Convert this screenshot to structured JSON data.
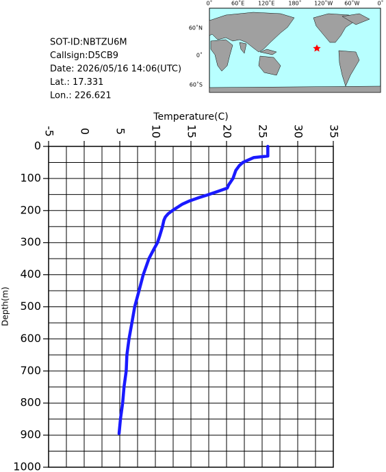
{
  "info": {
    "lines": [
      "SOT-ID:NBTZU6M",
      "Callsign:D5CB9",
      "Date:  2026/05/16 14:06(UTC)",
      "Lat.:   17.331",
      "Lon.:  226.621"
    ]
  },
  "map": {
    "lon_labels": [
      "0˚",
      "60˚E",
      "120˚E",
      "180˚",
      "120˚W",
      "60˚W",
      "0˚"
    ],
    "lat_labels": [
      "60˚N",
      "0˚",
      "60˚S"
    ]
  },
  "chart_data": {
    "type": "line",
    "x_label": "Temperature(C)",
    "y_label": "Depth(m)",
    "y": [
      0,
      30,
      35,
      50,
      60,
      75,
      100,
      120,
      130,
      140,
      150,
      160,
      170,
      180,
      190,
      200,
      210,
      220,
      230,
      250,
      280,
      300,
      320,
      350,
      400,
      450,
      500,
      550,
      600,
      650,
      700,
      750,
      800,
      850,
      895
    ],
    "values": [
      25.8,
      25.8,
      23.8,
      22.3,
      21.8,
      21.3,
      20.9,
      20.3,
      20.1,
      18.8,
      17.5,
      16.1,
      14.8,
      13.8,
      13.1,
      12.4,
      11.8,
      11.4,
      11.2,
      11.0,
      10.6,
      10.3,
      9.8,
      9.1,
      8.3,
      7.7,
      7.1,
      6.7,
      6.3,
      6.0,
      5.9,
      5.6,
      5.4,
      5.1,
      4.9
    ],
    "color": "#1a1aff",
    "xlim": [
      -5,
      35
    ],
    "xticks": [
      -5,
      0,
      5,
      10,
      15,
      20,
      25,
      30,
      35
    ],
    "ylim": [
      1000,
      0
    ],
    "yticks": [
      0,
      100,
      200,
      300,
      400,
      500,
      600,
      700,
      800,
      900,
      1000
    ],
    "x_minor_grid": [
      -2.5,
      2.5,
      7.5,
      12.5,
      17.5,
      22.5,
      27.5,
      32.5
    ],
    "y_minor_grid": [
      50,
      150,
      250,
      350,
      450,
      550,
      650,
      750,
      850,
      950
    ],
    "grid": true
  }
}
